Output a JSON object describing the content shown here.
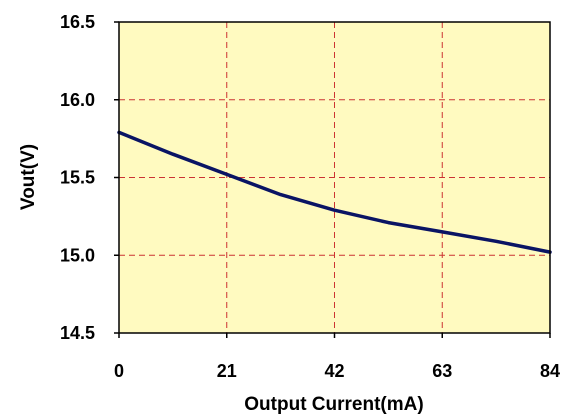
{
  "chart_data": {
    "type": "line",
    "xlabel": "Output Current(mA)",
    "ylabel": "Vout(V)",
    "xlim": [
      0,
      84
    ],
    "ylim": [
      14.5,
      16.5
    ],
    "xticks": [
      "0",
      "21",
      "42",
      "63",
      "84"
    ],
    "yticks": [
      "16.5",
      "16.0",
      "15.5",
      "15.0",
      "14.5"
    ],
    "grid": true,
    "plot_background": "#FFFAC0",
    "grid_color": "#CC3333",
    "series": [
      {
        "color": "#0A1464",
        "x": [
          0,
          10.5,
          21,
          31.5,
          42,
          52.5,
          63,
          73.5,
          84
        ],
        "y": [
          15.79,
          15.65,
          15.52,
          15.39,
          15.29,
          15.21,
          15.15,
          15.09,
          15.02
        ]
      }
    ]
  }
}
